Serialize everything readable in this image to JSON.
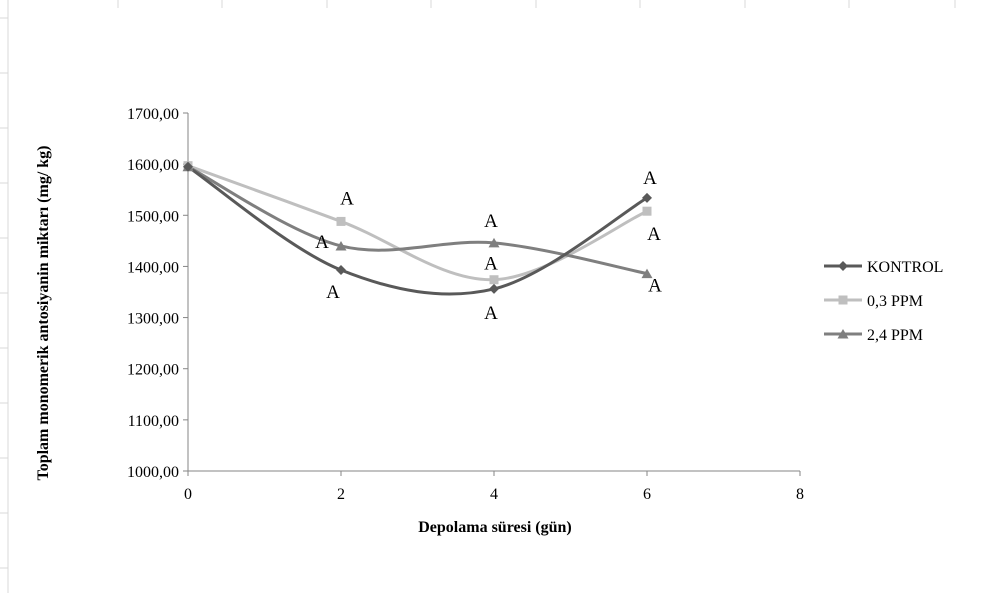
{
  "chart_data": {
    "type": "line",
    "title": "",
    "xlabel": "Depolama süresi (gün)",
    "ylabel": "Toplam monomerik antosiyanin miktarı (mg/ kg)",
    "xlim": [
      0,
      8
    ],
    "ylim": [
      1000,
      1700
    ],
    "x_ticks": [
      0,
      2,
      4,
      6,
      8
    ],
    "x_tick_labels": [
      "0",
      "2",
      "4",
      "6",
      "8"
    ],
    "y_ticks": [
      1000,
      1100,
      1200,
      1300,
      1400,
      1500,
      1600,
      1700
    ],
    "y_tick_labels": [
      "1000,00",
      "1100,00",
      "1200,00",
      "1300,00",
      "1400,00",
      "1500,00",
      "1600,00",
      "1700,00"
    ],
    "grid": false,
    "smooth": true,
    "legend_position": "right",
    "series": [
      {
        "name": "KONTROL",
        "marker": "diamond",
        "color": "#595959",
        "x": [
          0,
          2,
          4,
          6
        ],
        "y": [
          1595,
          1393,
          1356,
          1534
        ],
        "labels": [
          "",
          "A",
          "A",
          "A"
        ]
      },
      {
        "name": "0,3 PPM",
        "marker": "square",
        "color": "#bfbfbf",
        "x": [
          0,
          2,
          4,
          6
        ],
        "y": [
          1597,
          1488,
          1374,
          1508
        ],
        "labels": [
          "",
          "A",
          "A",
          "A"
        ]
      },
      {
        "name": "2,4 PPM",
        "marker": "triangle",
        "color": "#7f7f7f",
        "x": [
          0,
          2,
          4,
          6
        ],
        "y": [
          1595,
          1440,
          1446,
          1386
        ],
        "labels": [
          "",
          "A",
          "A",
          "A"
        ]
      }
    ]
  }
}
